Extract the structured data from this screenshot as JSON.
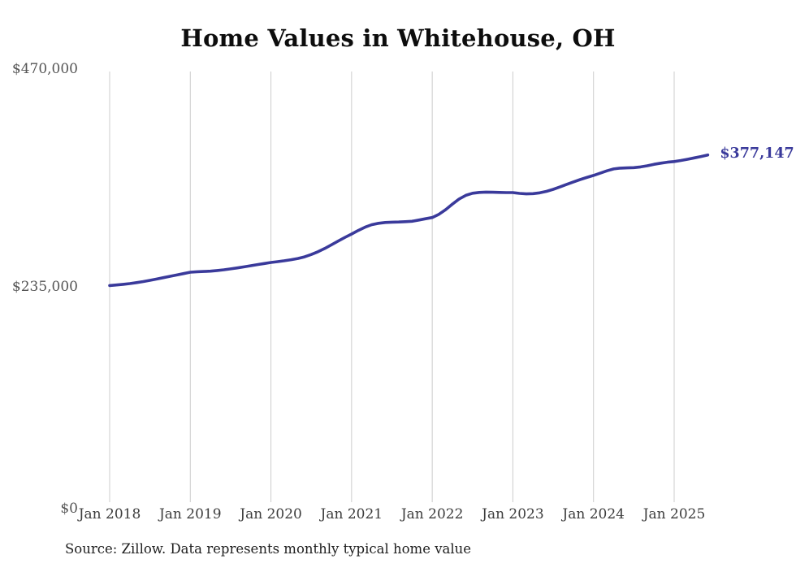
{
  "title": "Home Values in Whitehouse, OH",
  "source_note": "Source: Zillow. Data represents monthly typical home value",
  "end_label": "$377,147",
  "colors": {
    "line": "#3A3A9B",
    "end_label_text": "#3A3A9B",
    "grid": "#cccccc",
    "y_axis_text": "#555555",
    "x_axis_text": "#3d3d3d",
    "title_text": "#0d0d0d",
    "source_text": "#1f1f1f",
    "background": "#ffffff"
  },
  "chart_data": {
    "type": "line",
    "title": "Home Values in Whitehouse, OH",
    "xlabel": "",
    "ylabel": "",
    "ylim": [
      0,
      470000
    ],
    "grid": "vertical-only",
    "legend": "none",
    "y_ticks": [
      {
        "label": "$470,000",
        "value": 470000
      },
      {
        "label": "$235,000",
        "value": 235000
      },
      {
        "label": "$0",
        "value": 0
      }
    ],
    "x_tick_labels": [
      "Jan 2018",
      "Jan 2019",
      "Jan 2020",
      "Jan 2021",
      "Jan 2022",
      "Jan 2023",
      "Jan 2024",
      "Jan 2025"
    ],
    "months_per_tick": 12,
    "end_value": 377147,
    "end_value_label": "$377,147",
    "series": [
      {
        "name": "Monthly typical home value",
        "x": [
          "2018-01",
          "2018-02",
          "2018-03",
          "2018-04",
          "2018-05",
          "2018-06",
          "2018-07",
          "2018-08",
          "2018-09",
          "2018-10",
          "2018-11",
          "2018-12",
          "2019-01",
          "2019-02",
          "2019-03",
          "2019-04",
          "2019-05",
          "2019-06",
          "2019-07",
          "2019-08",
          "2019-09",
          "2019-10",
          "2019-11",
          "2019-12",
          "2020-01",
          "2020-02",
          "2020-03",
          "2020-04",
          "2020-05",
          "2020-06",
          "2020-07",
          "2020-08",
          "2020-09",
          "2020-10",
          "2020-11",
          "2020-12",
          "2021-01",
          "2021-02",
          "2021-03",
          "2021-04",
          "2021-05",
          "2021-06",
          "2021-07",
          "2021-08",
          "2021-09",
          "2021-10",
          "2021-11",
          "2021-12",
          "2022-01",
          "2022-02",
          "2022-03",
          "2022-04",
          "2022-05",
          "2022-06",
          "2022-07",
          "2022-08",
          "2022-09",
          "2022-10",
          "2022-11",
          "2022-12",
          "2023-01",
          "2023-02",
          "2023-03",
          "2023-04",
          "2023-05",
          "2023-06",
          "2023-07",
          "2023-08",
          "2023-09",
          "2023-10",
          "2023-11",
          "2023-12",
          "2024-01",
          "2024-02",
          "2024-03",
          "2024-04",
          "2024-05",
          "2024-06",
          "2024-07",
          "2024-08",
          "2024-09",
          "2024-10",
          "2024-11",
          "2024-12",
          "2025-01",
          "2025-02",
          "2025-03",
          "2025-04",
          "2025-05",
          "2025-06"
        ],
        "values": [
          236000,
          236600,
          237300,
          238100,
          239100,
          240300,
          241600,
          243000,
          244500,
          246000,
          247400,
          248900,
          250400,
          250900,
          251200,
          251500,
          252200,
          253000,
          254000,
          255000,
          256200,
          257400,
          258600,
          259800,
          260900,
          261800,
          262800,
          263900,
          265200,
          267000,
          269500,
          272500,
          276000,
          280000,
          284000,
          288000,
          291700,
          295500,
          299000,
          301800,
          303300,
          304100,
          304500,
          304700,
          305000,
          305500,
          306800,
          308200,
          309500,
          313000,
          318000,
          324000,
          329500,
          333500,
          335800,
          336600,
          337000,
          336800,
          336600,
          336500,
          336500,
          335600,
          335100,
          335300,
          336200,
          337800,
          340000,
          342500,
          345300,
          348000,
          350500,
          352800,
          355000,
          357500,
          360000,
          362000,
          362900,
          363200,
          363400,
          364200,
          365500,
          367000,
          368300,
          369300,
          370000,
          371200,
          372500,
          374000,
          375500,
          377147
        ]
      }
    ]
  }
}
